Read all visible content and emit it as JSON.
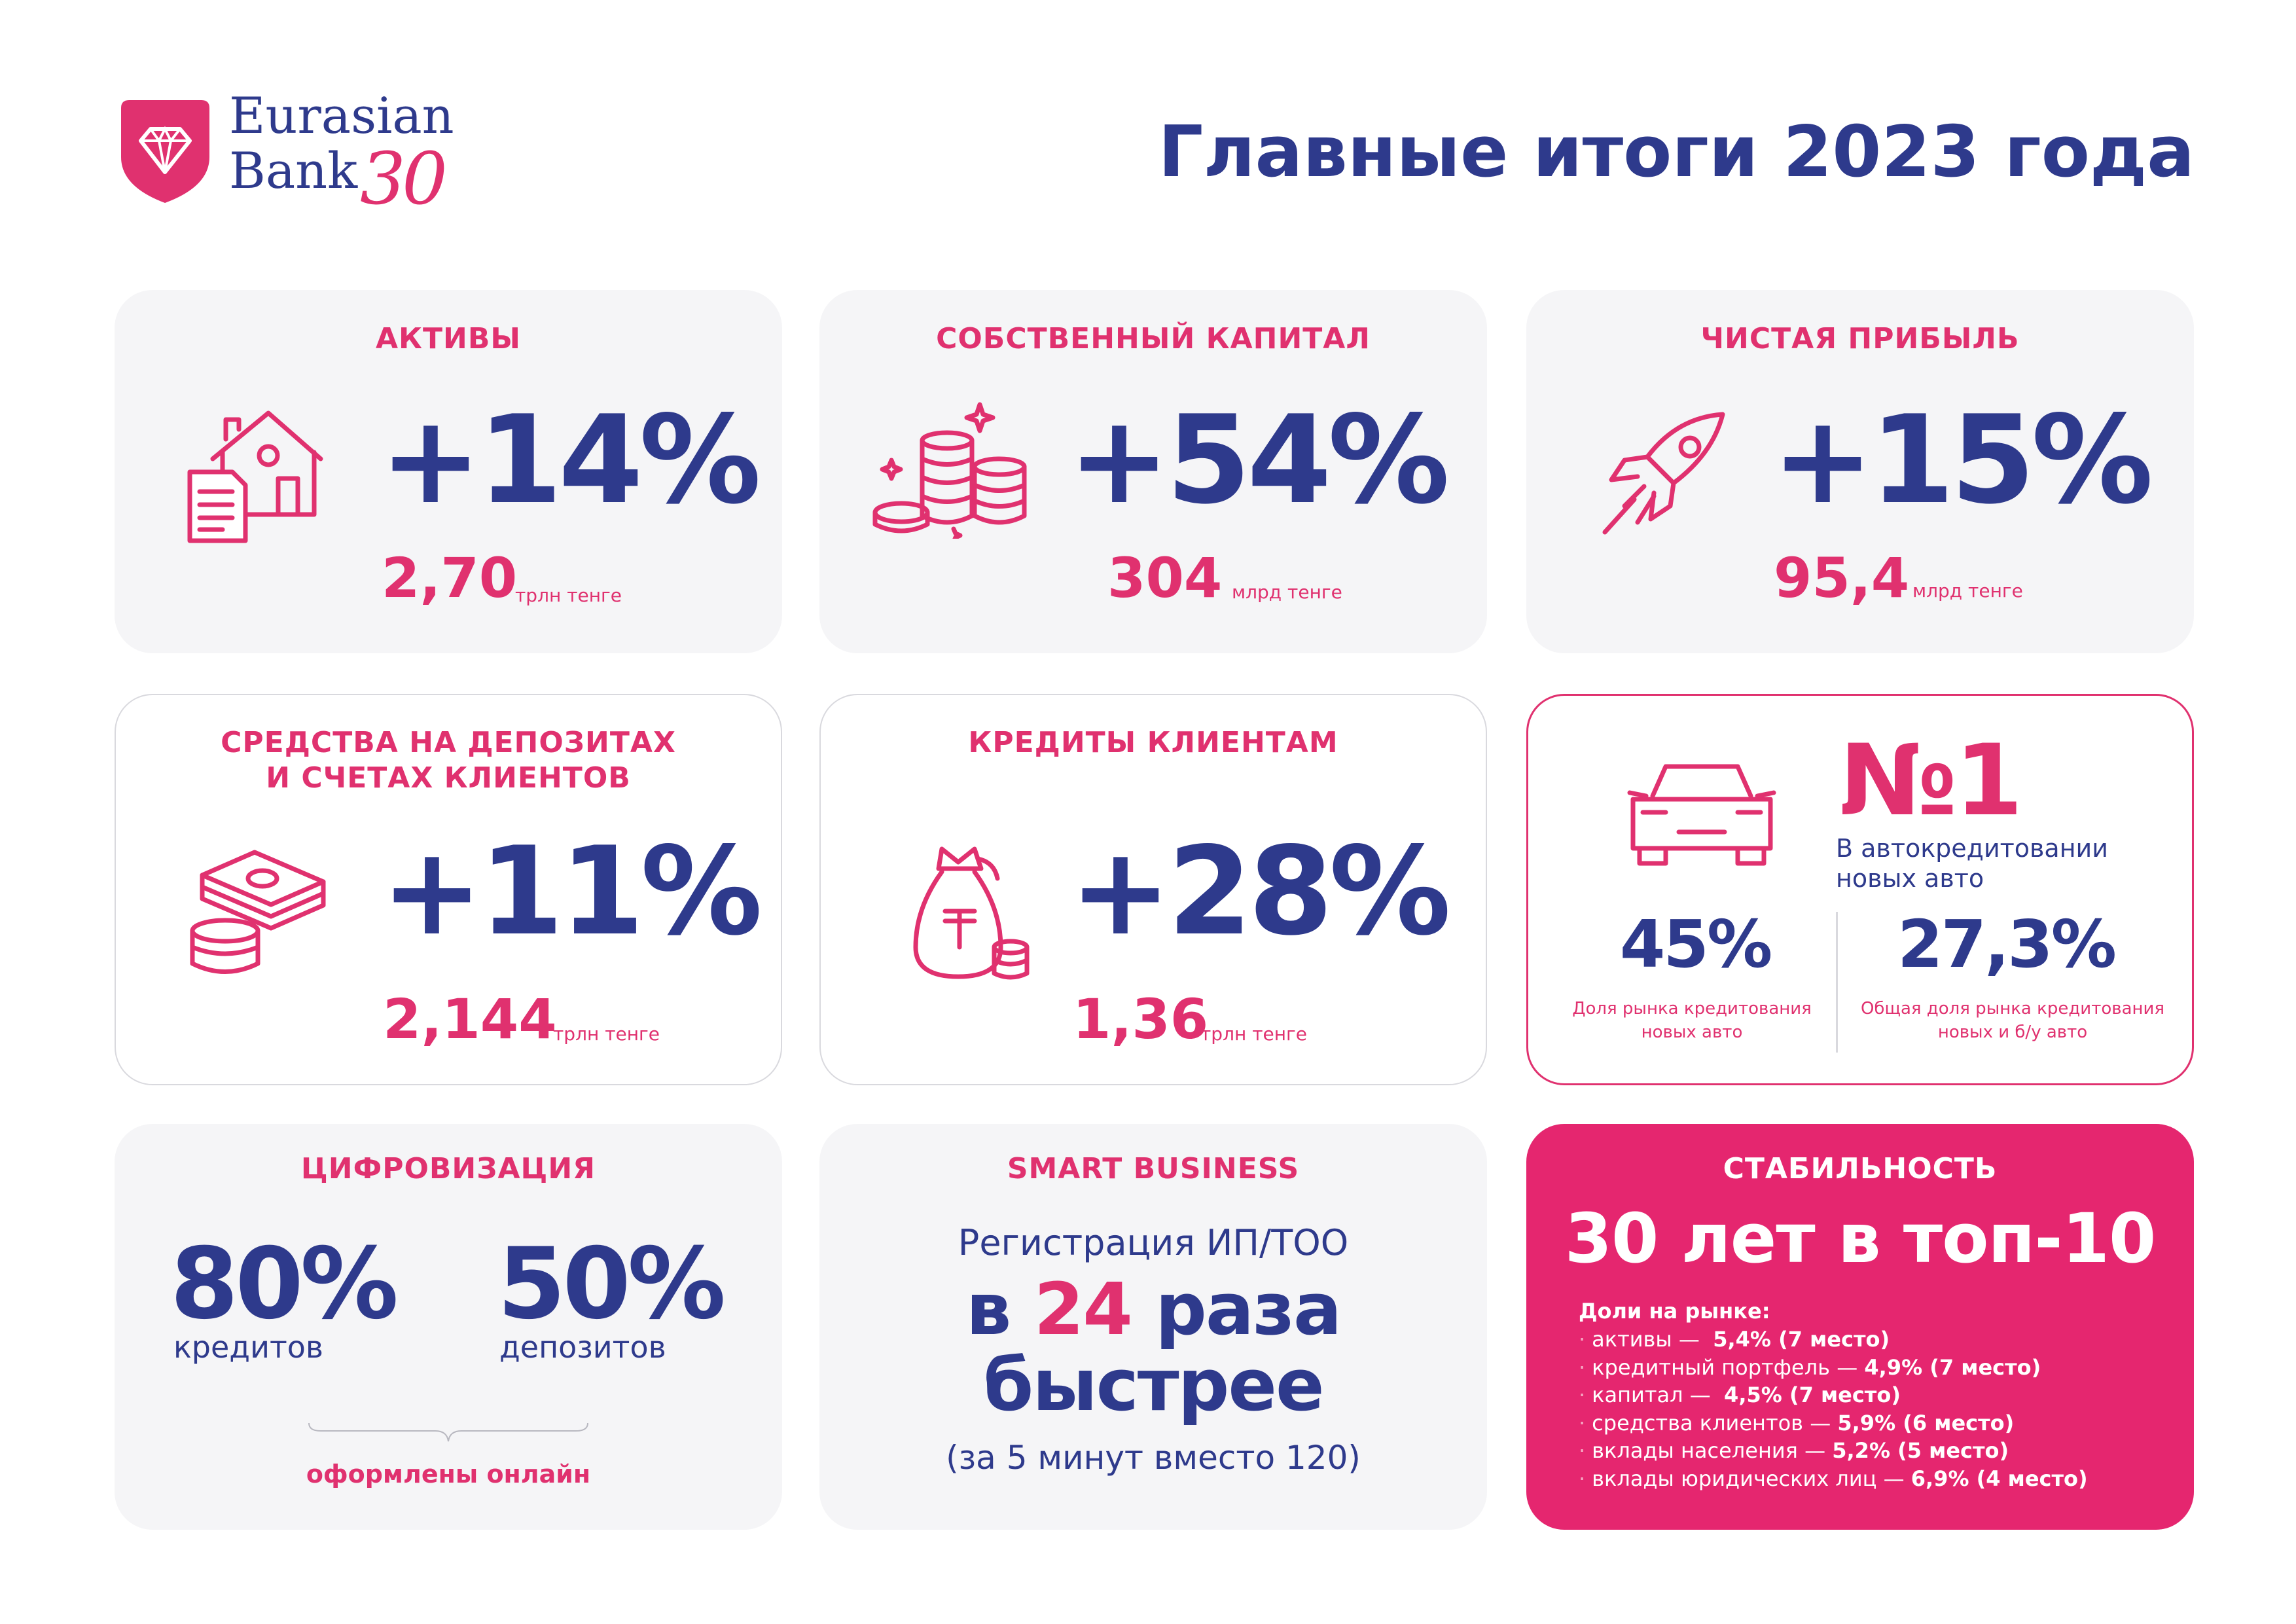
{
  "brand": {
    "name_line1": "Eurasian",
    "name_line2": "Bank",
    "anniversary": "30"
  },
  "title": "Главные итоги 2023 года",
  "colors": {
    "navy": "#2e3a8c",
    "pink": "#e0316f",
    "card_bg": "#f5f5f7"
  },
  "cards": {
    "assets": {
      "title": "АКТИВЫ",
      "growth": "+14%",
      "value": "2,70",
      "unit": "трлн тенге",
      "icon": "house-document-icon"
    },
    "equity": {
      "title": "СОБСТВЕННЫЙ КАПИТАЛ",
      "growth": "+54%",
      "value": "304",
      "unit": "млрд тенге",
      "icon": "coin-stacks-icon"
    },
    "profit": {
      "title": "ЧИСТАЯ ПРИБЫЛЬ",
      "growth": "+15%",
      "value": "95,4",
      "unit": "млрд тенге",
      "icon": "rocket-icon"
    },
    "deposits": {
      "title_line1": "СРЕДСТВА НА ДЕПОЗИТАХ",
      "title_line2": "И СЧЕТАХ КЛИЕНТОВ",
      "growth": "+11%",
      "value": "2,144",
      "unit": "трлн тенге",
      "icon": "cash-coins-icon"
    },
    "loans": {
      "title": "КРЕДИТЫ КЛИЕНТАМ",
      "growth": "+28%",
      "value": "1,36",
      "unit": "трлн тенге",
      "icon": "money-bag-icon"
    },
    "auto": {
      "rank": "№1",
      "desc": "В автокредитовании новых авто",
      "left_pct": "45%",
      "left_caption_line1": "Доля рынка кредитования",
      "left_caption_line2": "новых авто",
      "right_pct": "27,3%",
      "right_caption_line1": "Общая доля рынка кредитования",
      "right_caption_line2": "новых и б/у авто",
      "icon": "car-icon"
    },
    "digital": {
      "title": "ЦИФРОВИЗАЦИЯ",
      "left_pct": "80%",
      "left_label": "кредитов",
      "right_pct": "50%",
      "right_label": "депозитов",
      "footer": "оформлены онлайн"
    },
    "smart": {
      "title": "SMART BUSINESS",
      "line1": "Регистрация ИП/ТОО",
      "line2_pre": "в ",
      "line2_num": "24",
      "line2_post": " раза",
      "line3": "быстрее",
      "line4": "(за 5 минут вместо 120)"
    },
    "stability": {
      "title": "СТАБИЛЬНОСТЬ",
      "headline": "30 лет в топ-10",
      "list_header": "Доли на рынке:",
      "items": [
        {
          "label": "активы —",
          "value": "5,4% (7 место)"
        },
        {
          "label": "кредитный портфель —",
          "value": "4,9% (7 место)"
        },
        {
          "label": "капитал —",
          "value": "4,5% (7 место)"
        },
        {
          "label": "средства клиентов —",
          "value": "5,9% (6 место)"
        },
        {
          "label": "вклады населения —",
          "value": "5,2% (5 место)"
        },
        {
          "label": "вклады юридических лиц —",
          "value": "6,9% (4 место)"
        }
      ]
    }
  }
}
